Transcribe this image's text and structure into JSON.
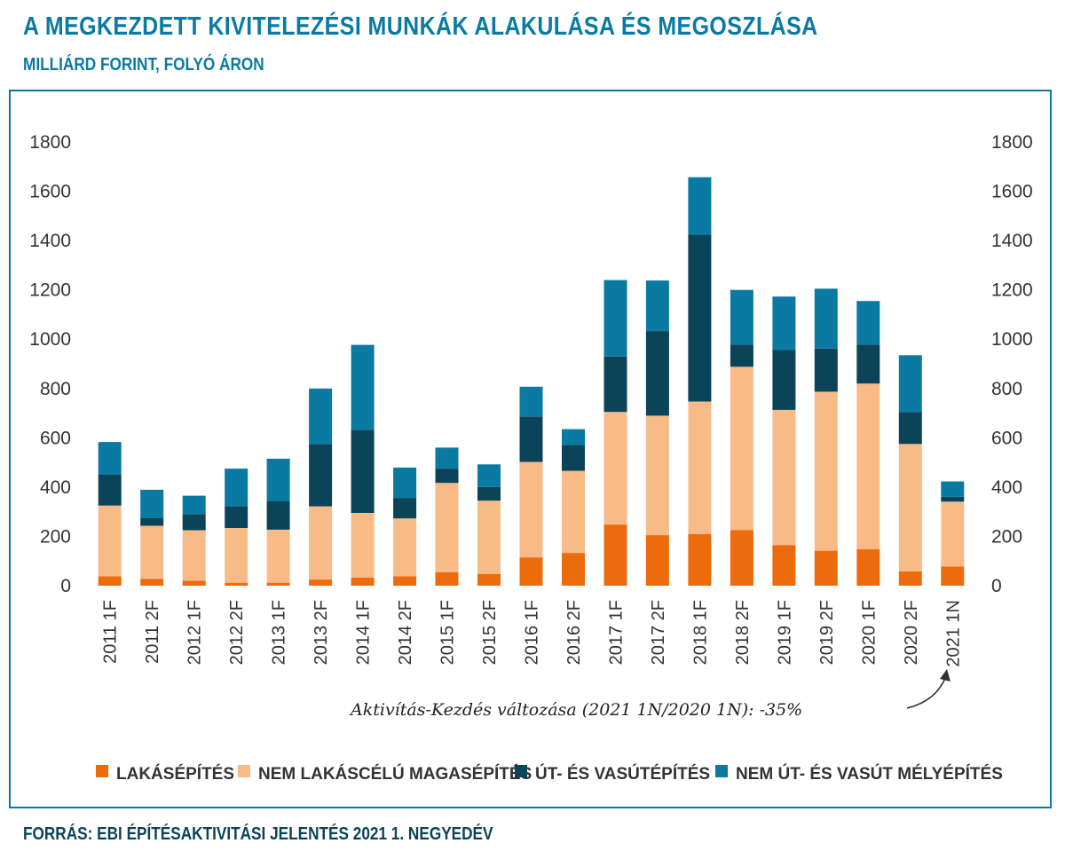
{
  "header": {
    "title": "A MEGKEZDETT KIVITELEZÉSI MUNKÁK ALAKULÁSA ÉS MEGOSZLÁSA",
    "subtitle": "MILLIÁRD FORINT, FOLYÓ ÁRON"
  },
  "footer": {
    "source": "FORRÁS: EBI ÉPÍTÉSAKTIVITÁSI JELENTÉS 2021 1. NEGYEDÉV"
  },
  "annotation": "Aktivítás-Kezdés változása (2021 1N/2020 1N): -35%",
  "chart_data": {
    "type": "bar",
    "stacked": true,
    "categories": [
      "2011 1F",
      "2011 2F",
      "2012 1F",
      "2012 2F",
      "2013 1F",
      "2013 2F",
      "2014 1F",
      "2014 2F",
      "2015 1F",
      "2015 2F",
      "2016 1F",
      "2016 2F",
      "2017 1F",
      "2017 2F",
      "2018 1F",
      "2018 2F",
      "2019 1F",
      "2019 2F",
      "2020 1F",
      "2020 2F",
      "2021 1N"
    ],
    "series": [
      {
        "name": "LAKÁSÉPÍTÉS",
        "color": "#ec6b0c",
        "values": [
          38,
          28,
          20,
          12,
          12,
          25,
          33,
          38,
          55,
          48,
          115,
          133,
          248,
          205,
          210,
          225,
          165,
          142,
          148,
          58,
          78
        ]
      },
      {
        "name": "NEM LAKÁSCÉLÚ MAGASÉPÍTÉS",
        "color": "#f8bb88",
        "values": [
          287,
          215,
          205,
          222,
          215,
          297,
          262,
          235,
          362,
          297,
          387,
          333,
          457,
          485,
          537,
          663,
          548,
          645,
          672,
          517,
          263
        ]
      },
      {
        "name": "ÚT- ÉS VASÚTÉPÍTÉS",
        "color": "#0b4358",
        "values": [
          125,
          32,
          66,
          88,
          115,
          253,
          337,
          83,
          58,
          55,
          185,
          105,
          225,
          343,
          677,
          90,
          243,
          175,
          158,
          130,
          20
        ]
      },
      {
        "name": "NEM ÚT- ÉS VASÚT MÉLYÉPÍTÉS",
        "color": "#0a7aa3",
        "values": [
          133,
          114,
          74,
          153,
          173,
          225,
          345,
          123,
          85,
          92,
          120,
          64,
          310,
          205,
          233,
          222,
          217,
          243,
          177,
          230,
          62
        ]
      }
    ],
    "ylim": [
      0,
      1800
    ],
    "yticks": [
      0,
      200,
      400,
      600,
      800,
      1000,
      1200,
      1400,
      1600,
      1800
    ],
    "secondary_y_axis": true,
    "grid": false,
    "legend": "bottom"
  }
}
